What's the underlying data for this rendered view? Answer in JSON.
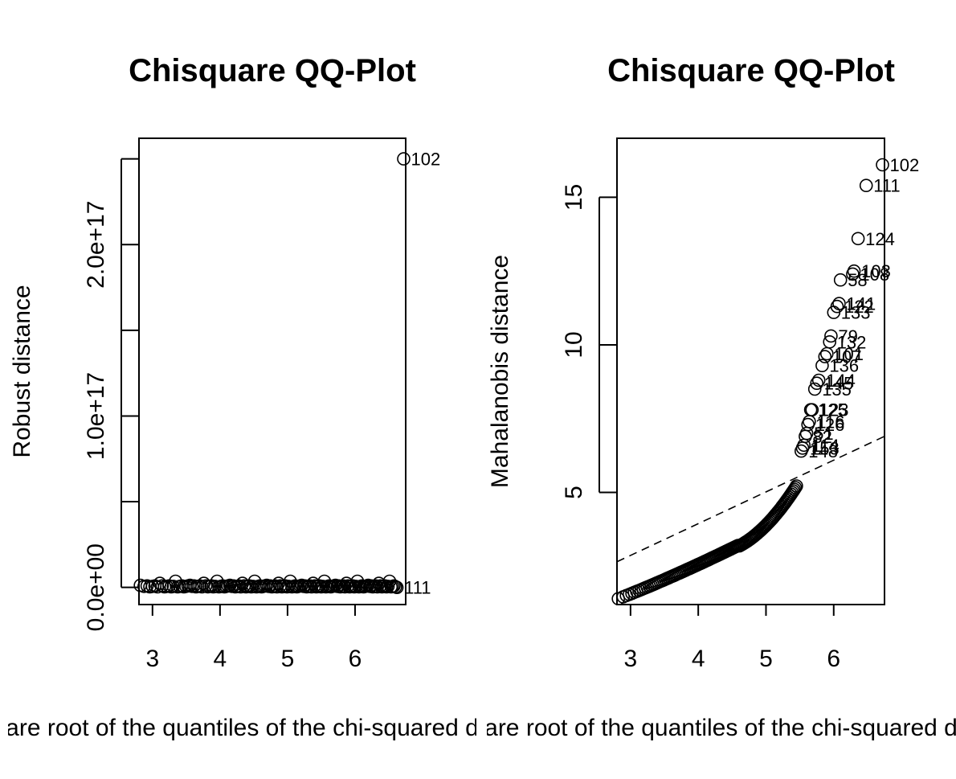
{
  "chart_data": [
    {
      "type": "scatter",
      "title": "Chisquare QQ-Plot",
      "xlabel": "Square root of the quantiles of the chi-squared distribution",
      "ylabel": "Robust distance",
      "xlim": [
        2.8,
        6.75
      ],
      "ylim": [
        -1e+16,
        2.62e+17
      ],
      "xticks": [
        3,
        4,
        5,
        6
      ],
      "xtick_labels": [
        "3",
        "4",
        "5",
        "6"
      ],
      "yticks": [
        0,
        5e+16,
        1e+17,
        1.5e+17,
        2e+17,
        2.5e+17
      ],
      "ytick_labels": [
        "0.0e+00",
        "",
        "1.0e+17",
        "",
        "2.0e+17",
        ""
      ],
      "grid": false,
      "reference_line": null,
      "points_summary": "about 145 observations with robust distance near 0 across x from 2.82 to 6.6",
      "highlighted_points": [
        {
          "x": 6.72,
          "y": 2.5e+17,
          "label": "102"
        },
        {
          "x": 6.62,
          "y": 0.0,
          "label": "111"
        }
      ]
    },
    {
      "type": "scatter",
      "title": "Chisquare QQ-Plot",
      "xlabel": "Square root of the quantiles of the chi-squared distribution",
      "ylabel": "Mahalanobis distance",
      "xlim": [
        2.8,
        6.75
      ],
      "ylim": [
        1.2,
        17.0
      ],
      "xticks": [
        3,
        4,
        5,
        6
      ],
      "xtick_labels": [
        "3",
        "4",
        "5",
        "6"
      ],
      "yticks": [
        5,
        10,
        15
      ],
      "ytick_labels": [
        "5",
        "10",
        "15"
      ],
      "grid": false,
      "reference_line": {
        "style": "dashed",
        "from": [
          2.8,
          2.65
        ],
        "to": [
          6.75,
          6.9
        ]
      },
      "points_summary": "curve rising from about 1.4 at x 2.82 to about 5.9 at x 5.45, then labelled outliers",
      "highlighted_points": [
        {
          "x": 6.72,
          "y": 16.1,
          "label": "102"
        },
        {
          "x": 6.48,
          "y": 15.4,
          "label": "111"
        },
        {
          "x": 6.36,
          "y": 13.6,
          "label": "124"
        },
        {
          "x": 6.3,
          "y": 12.5,
          "label": "103"
        },
        {
          "x": 6.28,
          "y": 12.4,
          "label": "108"
        },
        {
          "x": 6.1,
          "y": 12.2,
          "label": "58"
        },
        {
          "x": 6.08,
          "y": 11.4,
          "label": "141"
        },
        {
          "x": 6.05,
          "y": 11.3,
          "label": "122"
        },
        {
          "x": 6.0,
          "y": 11.1,
          "label": "133"
        },
        {
          "x": 5.96,
          "y": 10.3,
          "label": "79"
        },
        {
          "x": 5.94,
          "y": 10.1,
          "label": "132"
        },
        {
          "x": 5.9,
          "y": 9.7,
          "label": "101"
        },
        {
          "x": 5.87,
          "y": 9.6,
          "label": "107"
        },
        {
          "x": 5.83,
          "y": 9.3,
          "label": "136"
        },
        {
          "x": 5.78,
          "y": 8.8,
          "label": "144"
        },
        {
          "x": 5.75,
          "y": 8.7,
          "label": "145"
        },
        {
          "x": 5.72,
          "y": 8.5,
          "label": "135"
        },
        {
          "x": 5.68,
          "y": 7.8,
          "label": "123"
        },
        {
          "x": 5.66,
          "y": 7.8,
          "label": "125"
        },
        {
          "x": 5.64,
          "y": 7.4,
          "label": "116"
        },
        {
          "x": 5.62,
          "y": 7.3,
          "label": "126"
        },
        {
          "x": 5.6,
          "y": 7.0,
          "label": "51"
        },
        {
          "x": 5.58,
          "y": 6.9,
          "label": "82"
        },
        {
          "x": 5.56,
          "y": 6.6,
          "label": "114"
        },
        {
          "x": 5.54,
          "y": 6.5,
          "label": "153"
        },
        {
          "x": 5.52,
          "y": 6.4,
          "label": "148"
        }
      ]
    }
  ]
}
